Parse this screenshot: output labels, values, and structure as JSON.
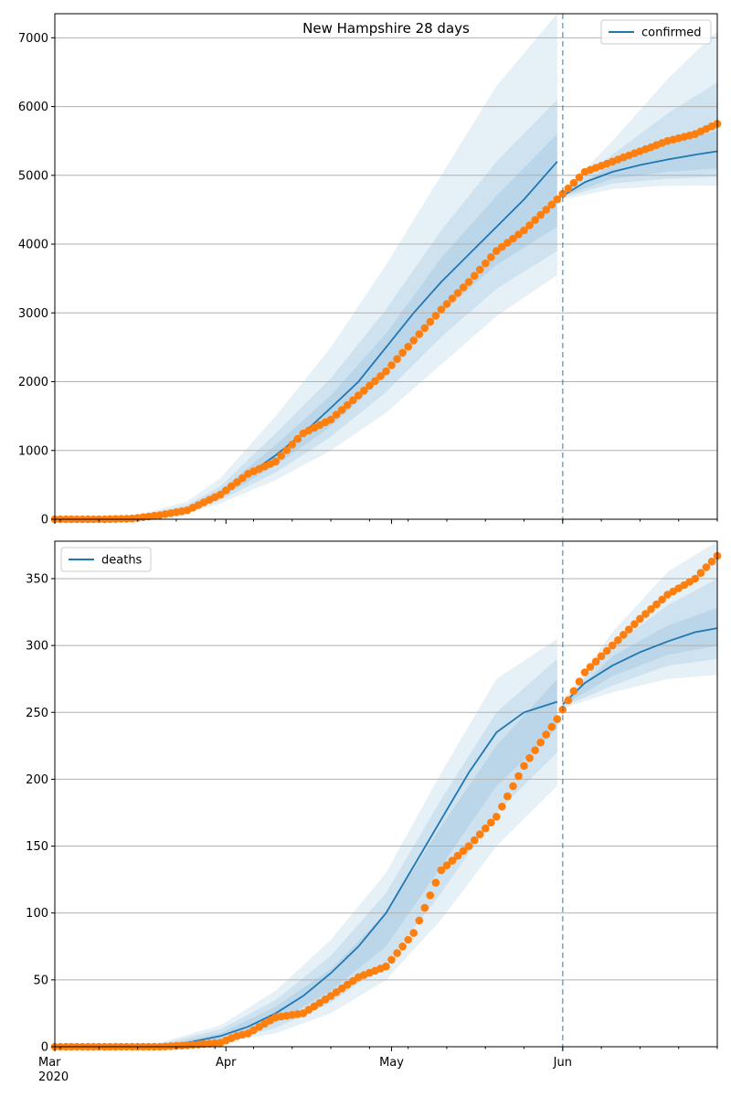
{
  "chart_data": [
    {
      "type": "line",
      "title": "New Hampshire 28 days",
      "xlabel": "",
      "ylabel": "",
      "ylim": [
        0,
        7350
      ],
      "yticks": [
        0,
        1000,
        2000,
        3000,
        4000,
        5000,
        6000,
        7000
      ],
      "grid": "horizontal",
      "legend": {
        "position": "top-right",
        "entries": [
          "confirmed"
        ]
      },
      "forecast_start": "2020-06-01",
      "series": [
        {
          "name": "confirmed",
          "kind": "model-median",
          "color": "#1f77b4",
          "x": [
            "2020-03-01",
            "2020-03-10",
            "2020-03-20",
            "2020-03-25",
            "2020-03-31",
            "2020-04-05",
            "2020-04-10",
            "2020-04-15",
            "2020-04-20",
            "2020-04-25",
            "2020-04-30",
            "2020-05-05",
            "2020-05-10",
            "2020-05-15",
            "2020-05-20",
            "2020-05-25",
            "2020-05-31",
            "2020-06-01",
            "2020-06-05",
            "2020-06-10",
            "2020-06-15",
            "2020-06-20",
            "2020-06-25",
            "2020-06-29"
          ],
          "y": [
            0,
            5,
            40,
            150,
            370,
            650,
            930,
            1250,
            1620,
            2000,
            2500,
            3000,
            3450,
            3850,
            4250,
            4650,
            5200,
            4700,
            4900,
            5050,
            5150,
            5230,
            5300,
            5350
          ]
        },
        {
          "name": "",
          "kind": "observed",
          "color": "#ff7f0e",
          "x": [
            "2020-03-01",
            "2020-03-10",
            "2020-03-15",
            "2020-03-20",
            "2020-03-25",
            "2020-03-31",
            "2020-04-05",
            "2020-04-10",
            "2020-04-15",
            "2020-04-20",
            "2020-04-25",
            "2020-04-30",
            "2020-05-05",
            "2020-05-10",
            "2020-05-15",
            "2020-05-20",
            "2020-05-25",
            "2020-05-31",
            "2020-06-05",
            "2020-06-10",
            "2020-06-15",
            "2020-06-20",
            "2020-06-25",
            "2020-06-29"
          ],
          "y": [
            0,
            0,
            10,
            60,
            130,
            360,
            660,
            840,
            1250,
            1450,
            1800,
            2150,
            2600,
            3050,
            3450,
            3900,
            4200,
            4650,
            5050,
            5200,
            5350,
            5500,
            5600,
            5750
          ]
        }
      ],
      "bands": [
        {
          "x": [
            "2020-03-01",
            "2020-03-15",
            "2020-03-25",
            "2020-03-31",
            "2020-04-10",
            "2020-04-20",
            "2020-04-30",
            "2020-05-10",
            "2020-05-20",
            "2020-05-31"
          ],
          "lower": [
            0,
            2,
            90,
            230,
            570,
            1000,
            1550,
            2250,
            2950,
            3550
          ],
          "upper": [
            0,
            35,
            260,
            600,
            1500,
            2500,
            3700,
            5000,
            6300,
            7350
          ]
        },
        {
          "x": [
            "2020-03-01",
            "2020-03-15",
            "2020-03-25",
            "2020-03-31",
            "2020-04-10",
            "2020-04-20",
            "2020-04-30",
            "2020-05-10",
            "2020-05-20",
            "2020-05-31"
          ],
          "lower": [
            0,
            4,
            110,
            280,
            680,
            1200,
            1850,
            2650,
            3350,
            3900
          ],
          "upper": [
            0,
            25,
            210,
            480,
            1250,
            2050,
            3050,
            4200,
            5200,
            6100
          ]
        },
        {
          "x": [
            "2020-03-01",
            "2020-03-15",
            "2020-03-25",
            "2020-03-31",
            "2020-04-10",
            "2020-04-20",
            "2020-04-30",
            "2020-05-10",
            "2020-05-20",
            "2020-05-31"
          ],
          "lower": [
            0,
            6,
            125,
            320,
            780,
            1350,
            2100,
            3000,
            3700,
            4250
          ],
          "upper": [
            0,
            18,
            180,
            420,
            1080,
            1800,
            2700,
            3800,
            4700,
            5600
          ]
        },
        {
          "x": [
            "2020-06-01",
            "2020-06-10",
            "2020-06-20",
            "2020-06-29"
          ],
          "lower": [
            4650,
            4800,
            4850,
            4850
          ],
          "upper": [
            4750,
            5500,
            6400,
            7100
          ]
        },
        {
          "x": [
            "2020-06-01",
            "2020-06-10",
            "2020-06-20",
            "2020-06-29"
          ],
          "lower": [
            4680,
            4880,
            4950,
            4980
          ],
          "upper": [
            4740,
            5300,
            5900,
            6350
          ]
        },
        {
          "x": [
            "2020-06-01",
            "2020-06-10",
            "2020-06-20",
            "2020-06-29"
          ],
          "lower": [
            4700,
            4950,
            5050,
            5100
          ],
          "upper": [
            4720,
            5150,
            5450,
            5650
          ]
        }
      ]
    },
    {
      "type": "line",
      "title": "",
      "xlabel": "",
      "ylabel": "",
      "ylim": [
        0,
        378
      ],
      "yticks": [
        0,
        50,
        100,
        150,
        200,
        250,
        300,
        350
      ],
      "grid": "horizontal",
      "legend": {
        "position": "top-left",
        "entries": [
          "deaths"
        ]
      },
      "forecast_start": "2020-06-01",
      "series": [
        {
          "name": "deaths",
          "kind": "model-median",
          "color": "#1f77b4",
          "x": [
            "2020-03-01",
            "2020-03-10",
            "2020-03-20",
            "2020-03-25",
            "2020-03-31",
            "2020-04-05",
            "2020-04-10",
            "2020-04-15",
            "2020-04-20",
            "2020-04-25",
            "2020-04-30",
            "2020-05-05",
            "2020-05-10",
            "2020-05-15",
            "2020-05-20",
            "2020-05-25",
            "2020-05-31",
            "2020-06-01",
            "2020-06-05",
            "2020-06-10",
            "2020-06-15",
            "2020-06-20",
            "2020-06-25",
            "2020-06-29"
          ],
          "y": [
            0,
            0,
            1,
            3,
            8,
            15,
            25,
            38,
            55,
            75,
            100,
            135,
            170,
            205,
            235,
            250,
            258,
            256,
            272,
            285,
            295,
            303,
            310,
            313
          ]
        },
        {
          "name": "",
          "kind": "observed",
          "color": "#ff7f0e",
          "x": [
            "2020-03-01",
            "2020-03-10",
            "2020-03-20",
            "2020-03-25",
            "2020-03-31",
            "2020-04-03",
            "2020-04-05",
            "2020-04-10",
            "2020-04-15",
            "2020-04-20",
            "2020-04-25",
            "2020-04-30",
            "2020-05-05",
            "2020-05-10",
            "2020-05-15",
            "2020-05-20",
            "2020-05-25",
            "2020-05-31",
            "2020-06-05",
            "2020-06-10",
            "2020-06-15",
            "2020-06-20",
            "2020-06-25",
            "2020-06-29"
          ],
          "y": [
            0,
            0,
            0,
            1,
            3,
            8,
            10,
            22,
            25,
            38,
            52,
            60,
            85,
            132,
            150,
            172,
            210,
            245,
            280,
            300,
            320,
            338,
            350,
            367
          ]
        }
      ],
      "bands": [
        {
          "x": [
            "2020-03-01",
            "2020-03-20",
            "2020-03-31",
            "2020-04-10",
            "2020-04-20",
            "2020-04-30",
            "2020-05-10",
            "2020-05-20",
            "2020-05-31"
          ],
          "lower": [
            0,
            0,
            3,
            10,
            25,
            50,
            95,
            150,
            195
          ],
          "upper": [
            0,
            3,
            16,
            42,
            80,
            130,
            205,
            275,
            305
          ]
        },
        {
          "x": [
            "2020-03-01",
            "2020-03-20",
            "2020-03-31",
            "2020-04-10",
            "2020-04-20",
            "2020-04-30",
            "2020-05-10",
            "2020-05-20",
            "2020-05-31"
          ],
          "lower": [
            0,
            0,
            4,
            14,
            33,
            62,
            115,
            175,
            220
          ],
          "upper": [
            0,
            2,
            13,
            35,
            68,
            115,
            185,
            250,
            290
          ]
        },
        {
          "x": [
            "2020-03-01",
            "2020-03-20",
            "2020-03-31",
            "2020-04-10",
            "2020-04-20",
            "2020-04-30",
            "2020-05-10",
            "2020-05-20",
            "2020-05-31"
          ],
          "lower": [
            0,
            1,
            6,
            18,
            42,
            75,
            135,
            195,
            238
          ],
          "upper": [
            0,
            1,
            10,
            30,
            58,
            100,
            165,
            225,
            275
          ]
        },
        {
          "x": [
            "2020-06-01",
            "2020-06-10",
            "2020-06-20",
            "2020-06-29"
          ],
          "lower": [
            253,
            265,
            275,
            278
          ],
          "upper": [
            258,
            310,
            355,
            378
          ]
        },
        {
          "x": [
            "2020-06-01",
            "2020-06-10",
            "2020-06-20",
            "2020-06-29"
          ],
          "lower": [
            254,
            270,
            285,
            290
          ],
          "upper": [
            257,
            300,
            330,
            350
          ]
        },
        {
          "x": [
            "2020-06-01",
            "2020-06-10",
            "2020-06-20",
            "2020-06-29"
          ],
          "lower": [
            255,
            277,
            293,
            300
          ],
          "upper": [
            256,
            292,
            315,
            328
          ]
        }
      ]
    }
  ],
  "x_axis": {
    "range": [
      "2020-03-01",
      "2020-06-29"
    ],
    "major_ticks": [
      {
        "date": "2020-03-01",
        "label": "Mar",
        "sublabel": "2020"
      },
      {
        "date": "2020-04-01",
        "label": "Apr",
        "sublabel": ""
      },
      {
        "date": "2020-05-01",
        "label": "May",
        "sublabel": ""
      },
      {
        "date": "2020-06-01",
        "label": "Jun",
        "sublabel": ""
      }
    ]
  },
  "colors": {
    "model": "#1f77b4",
    "observed": "#ff7f0e",
    "band": "#1f77b4",
    "grid": "#b0b0b0",
    "forecast_line": "#1f77b4"
  }
}
